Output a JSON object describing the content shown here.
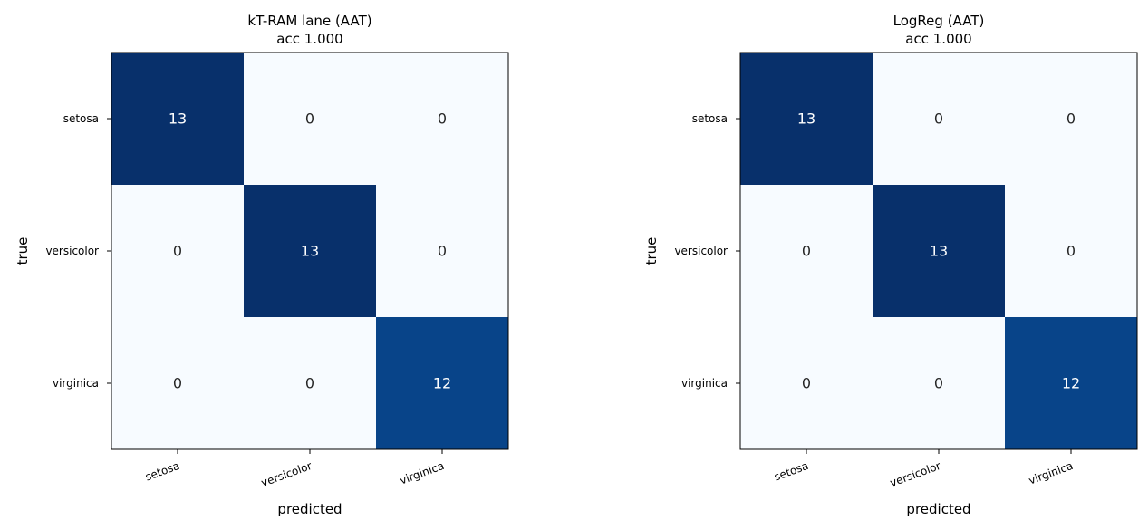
{
  "chart_data": [
    {
      "type": "heatmap",
      "title": [
        "kT-RAM lane (AAT)",
        "acc 1.000"
      ],
      "xlabel": "predicted",
      "ylabel": "true",
      "x_categories": [
        "setosa",
        "versicolor",
        "virginica"
      ],
      "y_categories": [
        "setosa",
        "versicolor",
        "virginica"
      ],
      "values": [
        [
          13,
          0,
          0
        ],
        [
          0,
          13,
          0
        ],
        [
          0,
          0,
          12
        ]
      ],
      "colormap": "Blues",
      "vmin": 0,
      "vmax": 13
    },
    {
      "type": "heatmap",
      "title": [
        "LogReg (AAT)",
        "acc 1.000"
      ],
      "xlabel": "predicted",
      "ylabel": "true",
      "x_categories": [
        "setosa",
        "versicolor",
        "virginica"
      ],
      "y_categories": [
        "setosa",
        "versicolor",
        "virginica"
      ],
      "values": [
        [
          13,
          0,
          0
        ],
        [
          0,
          13,
          0
        ],
        [
          0,
          0,
          12
        ]
      ],
      "colormap": "Blues",
      "vmin": 0,
      "vmax": 13
    }
  ],
  "colors": {
    "low": "#f7fbff",
    "high": "#08306b",
    "text_dark": "#262626",
    "text_light": "#ffffff"
  }
}
